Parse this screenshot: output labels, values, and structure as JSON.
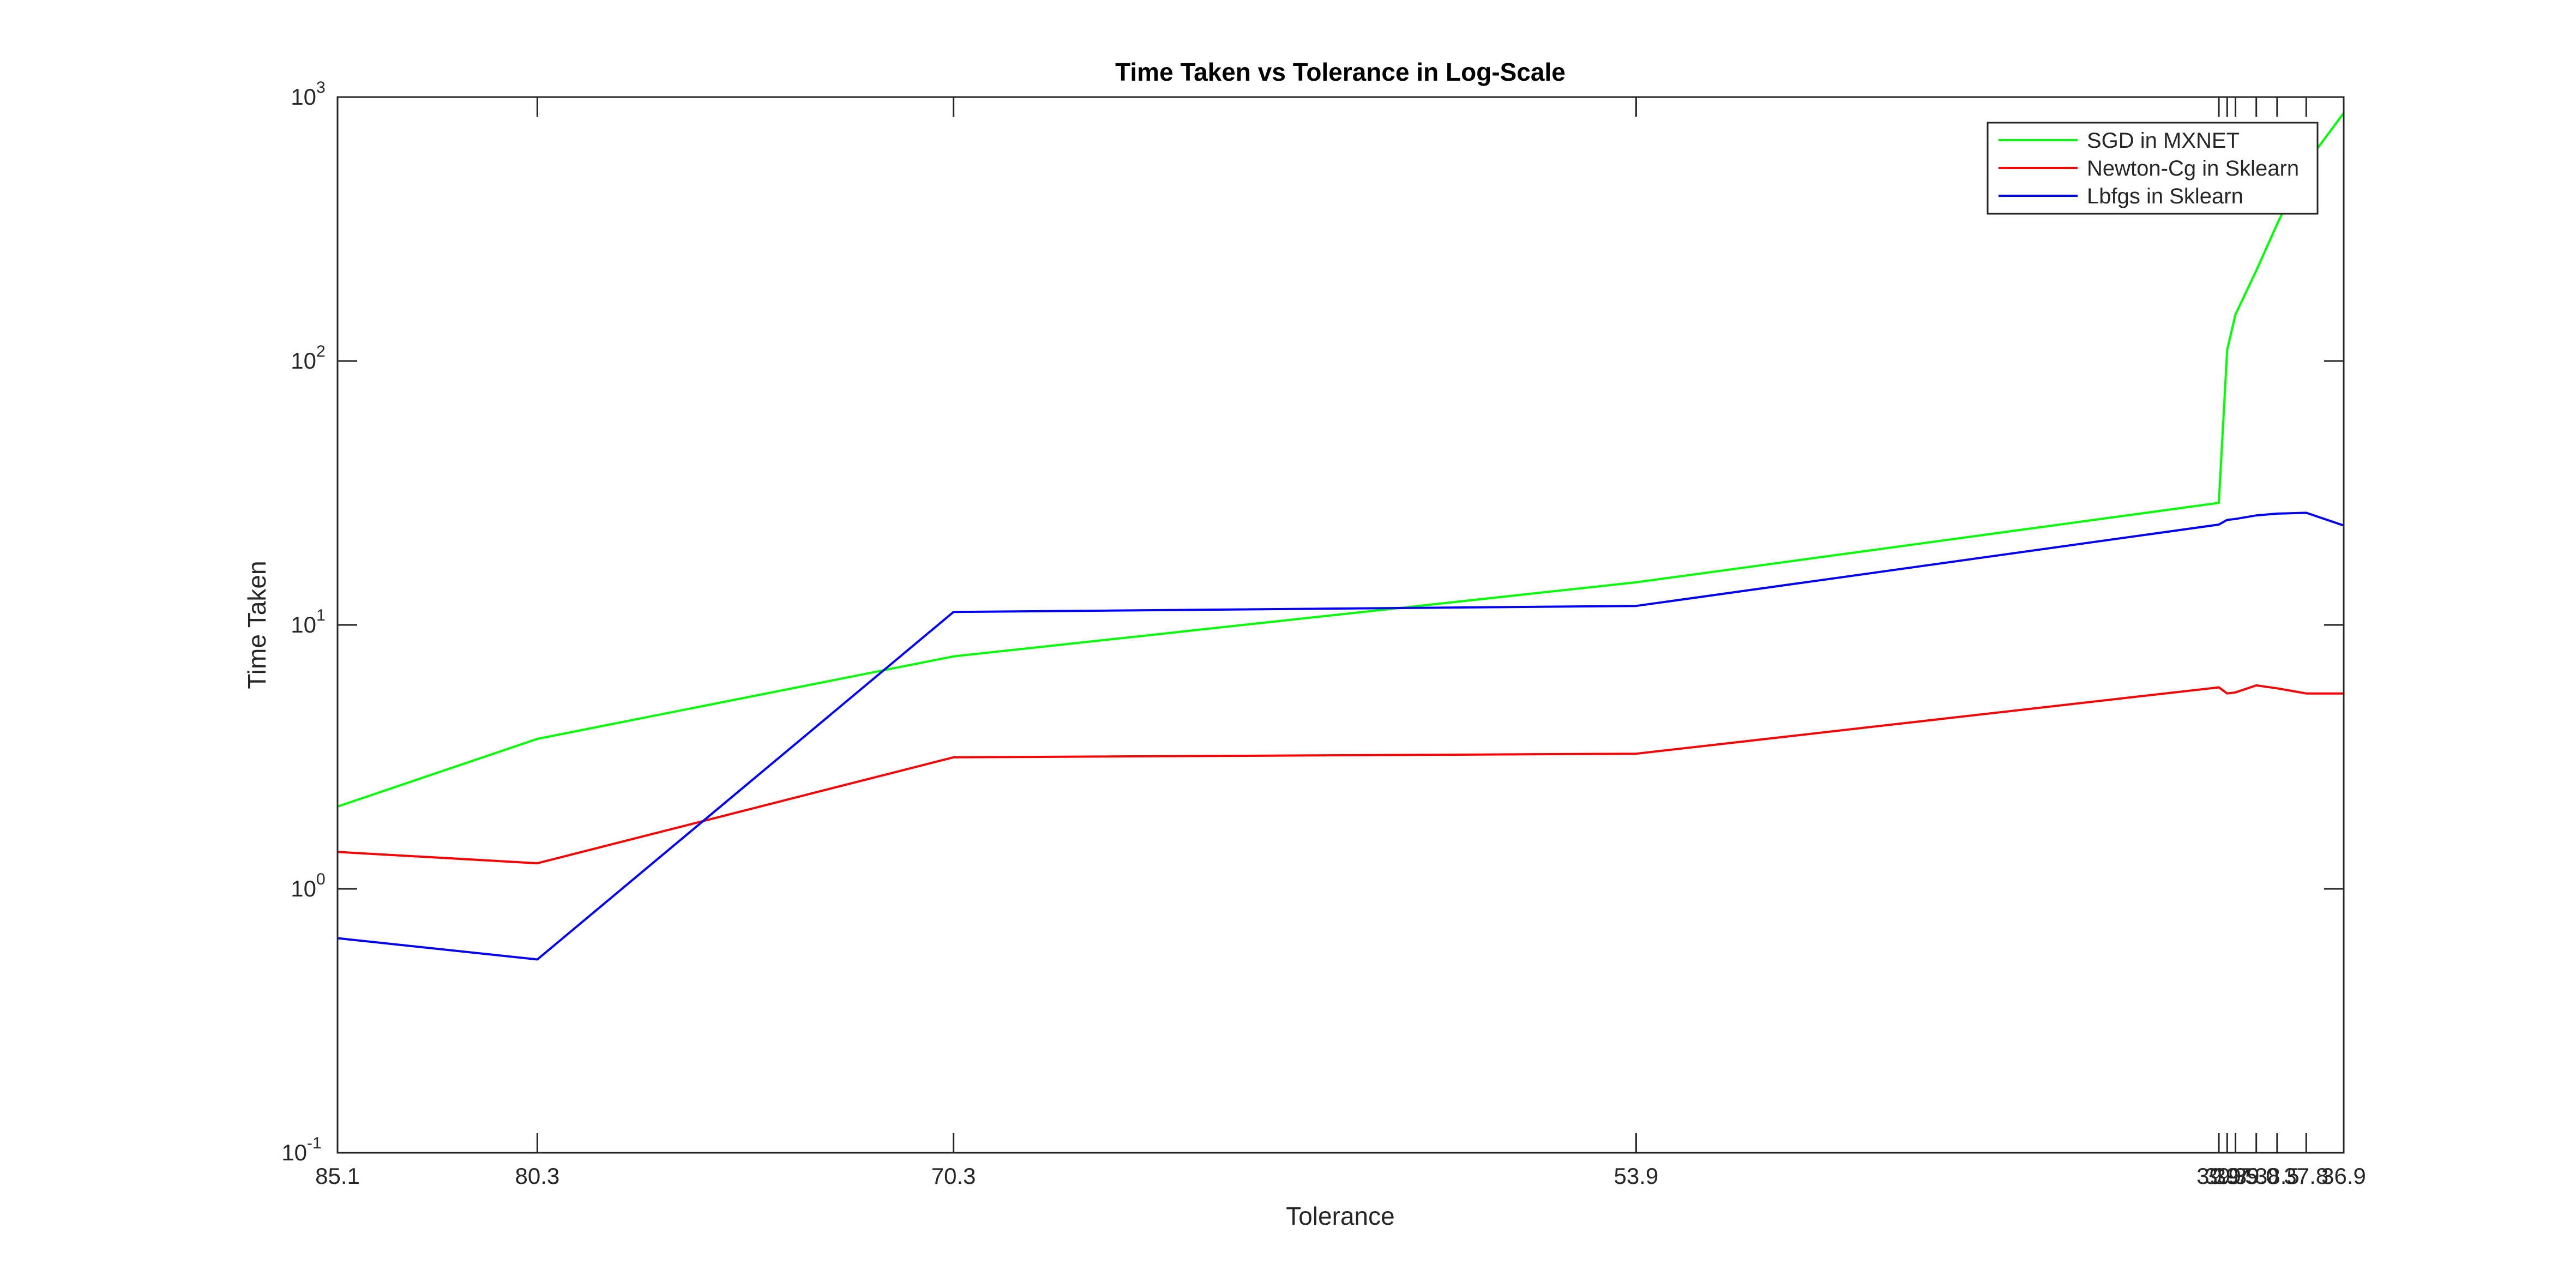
{
  "chart_data": {
    "type": "line",
    "title": "Time Taken vs Tolerance in Log-Scale",
    "xlabel": "Tolerance",
    "ylabel": "Time Taken",
    "yscale": "log",
    "ylim": [
      0.1,
      1000
    ],
    "yticks": [
      {
        "value": 0.1,
        "base": "10",
        "exp": "-1"
      },
      {
        "value": 1,
        "base": "10",
        "exp": "0"
      },
      {
        "value": 10,
        "base": "10",
        "exp": "1"
      },
      {
        "value": 100,
        "base": "10",
        "exp": "2"
      },
      {
        "value": 1000,
        "base": "10",
        "exp": "3"
      }
    ],
    "x": [
      85.1,
      80.3,
      70.3,
      53.9,
      39.9,
      39.7,
      39.5,
      39.0,
      38.5,
      37.8,
      36.9
    ],
    "xtick_labels": [
      "85.1",
      "80.3",
      "70.3",
      "53.9",
      "39.9",
      "39.7",
      "39.5",
      "39.0",
      "38.5",
      "37.8",
      "36.9"
    ],
    "grid": false,
    "legend_position": "top-right",
    "series": [
      {
        "name": "SGD in MXNET",
        "color": "#00ff00",
        "values": [
          2.05,
          3.7,
          7.6,
          14.5,
          29,
          110,
          150,
          220,
          330,
          560,
          870
        ]
      },
      {
        "name": "Newton-Cg in Sklearn",
        "color": "#ff0000",
        "values": [
          1.38,
          1.25,
          3.15,
          3.25,
          5.8,
          5.5,
          5.55,
          5.9,
          5.75,
          5.5,
          5.5
        ]
      },
      {
        "name": "Lbfgs in Sklearn",
        "color": "#0000ff",
        "values": [
          0.65,
          0.54,
          11.2,
          11.8,
          24,
          25,
          25.2,
          26,
          26.4,
          26.6,
          23.8
        ]
      }
    ]
  }
}
